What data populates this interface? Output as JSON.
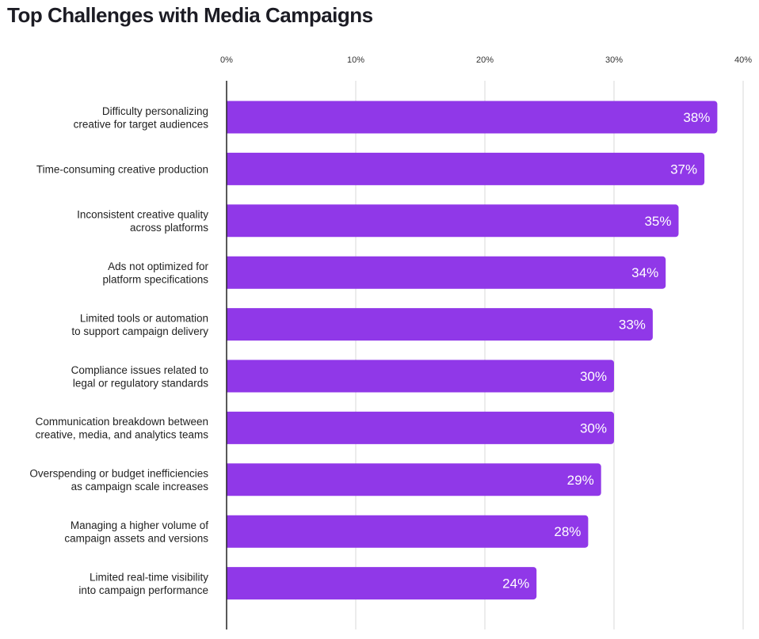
{
  "chart_data": {
    "type": "bar",
    "orientation": "horizontal",
    "title": "Top Challenges with Media Campaigns",
    "xlabel": "",
    "ylabel": "",
    "xlim": [
      0,
      40
    ],
    "ticks": [
      0,
      10,
      20,
      30,
      40
    ],
    "tick_labels": [
      "0%",
      "10%",
      "20%",
      "30%",
      "40%"
    ],
    "grid": true,
    "bar_color": "#9038E8",
    "categories": [
      [
        "Difficulty personalizing",
        "creative for target audiences"
      ],
      [
        "Time-consuming creative production"
      ],
      [
        "Inconsistent creative quality",
        "across platforms"
      ],
      [
        "Ads not optimized for",
        "platform specifications"
      ],
      [
        "Limited tools or automation",
        "to support campaign delivery"
      ],
      [
        "Compliance issues related to",
        "legal or regulatory standards"
      ],
      [
        "Communication breakdown between",
        "creative, media, and analytics teams"
      ],
      [
        "Overspending or budget inefficiencies",
        "as campaign scale increases"
      ],
      [
        "Managing a higher volume of",
        "campaign assets and versions"
      ],
      [
        "Limited real-time visibility",
        "into campaign performance"
      ]
    ],
    "values": [
      38,
      37,
      35,
      34,
      33,
      30,
      30,
      29,
      28,
      24
    ],
    "value_labels": [
      "38%",
      "37%",
      "35%",
      "34%",
      "33%",
      "30%",
      "30%",
      "29%",
      "28%",
      "24%"
    ]
  }
}
